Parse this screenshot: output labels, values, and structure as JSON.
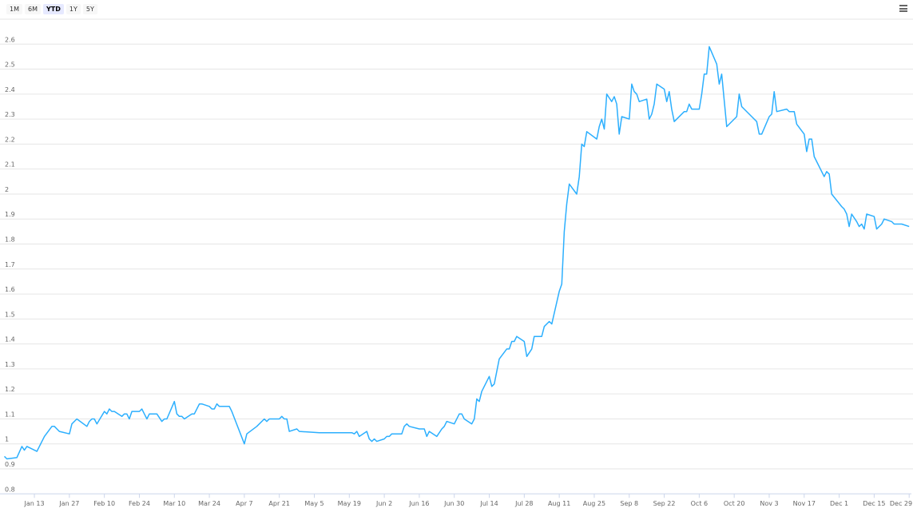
{
  "range_selector": {
    "buttons": [
      "1M",
      "6M",
      "YTD",
      "1Y",
      "5Y"
    ],
    "selected": "YTD"
  },
  "menu_icon": "hamburger-menu-icon",
  "colors": {
    "line": "#2caffe",
    "grid": "#e6e6e6",
    "axis": "#ccd6eb"
  },
  "chart_data": {
    "type": "line",
    "title": "",
    "xlabel": "",
    "ylabel": "",
    "ylim": [
      0.8,
      2.7
    ],
    "yticks": [
      "0.8",
      "0.9",
      "1",
      "1.1",
      "1.2",
      "1.3",
      "1.4",
      "1.5",
      "1.6",
      "1.7",
      "1.8",
      "1.9",
      "2",
      "2.1",
      "2.2",
      "2.3",
      "2.4",
      "2.5",
      "2.6"
    ],
    "xticks": [
      "Jan 13",
      "Jan 27",
      "Feb 10",
      "Feb 24",
      "Mar 10",
      "Mar 24",
      "Apr 7",
      "Apr 21",
      "May 5",
      "May 19",
      "Jun 2",
      "Jun 16",
      "Jun 30",
      "Jul 14",
      "Jul 28",
      "Aug 11",
      "Aug 25",
      "Sep 8",
      "Sep 22",
      "Oct 6",
      "Oct 20",
      "Nov 3",
      "Nov 17",
      "Dec 1",
      "Dec 15",
      "Dec 29"
    ],
    "grid": true,
    "legend": "none",
    "series": [
      {
        "points": [
          [
            "Jan 1",
            0.95
          ],
          [
            "Jan 2",
            0.94
          ],
          [
            "Jan 6",
            0.945
          ],
          [
            "Jan 8",
            0.99
          ],
          [
            "Jan 9",
            0.975
          ],
          [
            "Jan 10",
            0.99
          ],
          [
            "Jan 14",
            0.97
          ],
          [
            "Jan 15",
            0.99
          ],
          [
            "Jan 17",
            1.03
          ],
          [
            "Jan 20",
            1.07
          ],
          [
            "Jan 21",
            1.07
          ],
          [
            "Jan 23",
            1.05
          ],
          [
            "Jan 27",
            1.04
          ],
          [
            "Jan 28",
            1.08
          ],
          [
            "Jan 30",
            1.1
          ],
          [
            "Feb 3",
            1.07
          ],
          [
            "Feb 4",
            1.09
          ],
          [
            "Feb 5",
            1.1
          ],
          [
            "Feb 6",
            1.1
          ],
          [
            "Feb 7",
            1.08
          ],
          [
            "Feb 10",
            1.13
          ],
          [
            "Feb 11",
            1.12
          ],
          [
            "Feb 12",
            1.14
          ],
          [
            "Feb 13",
            1.13
          ],
          [
            "Feb 14",
            1.13
          ],
          [
            "Feb 17",
            1.11
          ],
          [
            "Feb 18",
            1.12
          ],
          [
            "Feb 19",
            1.12
          ],
          [
            "Feb 20",
            1.1
          ],
          [
            "Feb 21",
            1.13
          ],
          [
            "Feb 24",
            1.13
          ],
          [
            "Feb 25",
            1.14
          ],
          [
            "Feb 26",
            1.12
          ],
          [
            "Feb 27",
            1.1
          ],
          [
            "Feb 28",
            1.12
          ],
          [
            "Mar 3",
            1.12
          ],
          [
            "Mar 5",
            1.09
          ],
          [
            "Mar 6",
            1.1
          ],
          [
            "Mar 7",
            1.1
          ],
          [
            "Mar 10",
            1.17
          ],
          [
            "Mar 11",
            1.12
          ],
          [
            "Mar 12",
            1.11
          ],
          [
            "Mar 13",
            1.11
          ],
          [
            "Mar 14",
            1.1
          ],
          [
            "Mar 17",
            1.12
          ],
          [
            "Mar 18",
            1.12
          ],
          [
            "Mar 20",
            1.16
          ],
          [
            "Mar 21",
            1.16
          ],
          [
            "Mar 24",
            1.15
          ],
          [
            "Mar 25",
            1.14
          ],
          [
            "Mar 26",
            1.14
          ],
          [
            "Mar 27",
            1.16
          ],
          [
            "Mar 28",
            1.15
          ],
          [
            "Apr 1",
            1.15
          ],
          [
            "Apr 2",
            1.13
          ],
          [
            "Apr 7",
            1.0
          ],
          [
            "Apr 8",
            1.04
          ],
          [
            "Apr 12",
            1.07
          ],
          [
            "Apr 15",
            1.1
          ],
          [
            "Apr 16",
            1.09
          ],
          [
            "Apr 17",
            1.1
          ],
          [
            "Apr 21",
            1.1
          ],
          [
            "Apr 22",
            1.11
          ],
          [
            "Apr 23",
            1.1
          ],
          [
            "Apr 24",
            1.1
          ],
          [
            "Apr 25",
            1.05
          ],
          [
            "Apr 28",
            1.06
          ],
          [
            "Apr 29",
            1.05
          ],
          [
            "May 7",
            1.045
          ],
          [
            "May 20",
            1.045
          ],
          [
            "May 21",
            1.04
          ],
          [
            "May 22",
            1.05
          ],
          [
            "May 23",
            1.03
          ],
          [
            "May 26",
            1.05
          ],
          [
            "May 27",
            1.02
          ],
          [
            "May 28",
            1.01
          ],
          [
            "May 29",
            1.02
          ],
          [
            "May 30",
            1.01
          ],
          [
            "Jun 2",
            1.02
          ],
          [
            "Jun 3",
            1.03
          ],
          [
            "Jun 4",
            1.03
          ],
          [
            "Jun 5",
            1.04
          ],
          [
            "Jun 9",
            1.04
          ],
          [
            "Jun 10",
            1.07
          ],
          [
            "Jun 11",
            1.08
          ],
          [
            "Jun 12",
            1.07
          ],
          [
            "Jun 16",
            1.06
          ],
          [
            "Jun 18",
            1.06
          ],
          [
            "Jun 19",
            1.03
          ],
          [
            "Jun 20",
            1.05
          ],
          [
            "Jun 23",
            1.03
          ],
          [
            "Jun 25",
            1.06
          ],
          [
            "Jun 26",
            1.07
          ],
          [
            "Jun 27",
            1.09
          ],
          [
            "Jun 30",
            1.08
          ],
          [
            "Jul 2",
            1.12
          ],
          [
            "Jul 3",
            1.12
          ],
          [
            "Jul 4",
            1.1
          ],
          [
            "Jul 7",
            1.08
          ],
          [
            "Jul 8",
            1.1
          ],
          [
            "Jul 9",
            1.18
          ],
          [
            "Jul 10",
            1.17
          ],
          [
            "Jul 11",
            1.21
          ],
          [
            "Jul 14",
            1.27
          ],
          [
            "Jul 15",
            1.23
          ],
          [
            "Jul 16",
            1.24
          ],
          [
            "Jul 18",
            1.34
          ],
          [
            "Jul 21",
            1.38
          ],
          [
            "Jul 22",
            1.38
          ],
          [
            "Jul 23",
            1.41
          ],
          [
            "Jul 24",
            1.41
          ],
          [
            "Jul 25",
            1.43
          ],
          [
            "Jul 28",
            1.41
          ],
          [
            "Jul 29",
            1.35
          ],
          [
            "Jul 31",
            1.38
          ],
          [
            "Aug 1",
            1.43
          ],
          [
            "Aug 4",
            1.43
          ],
          [
            "Aug 5",
            1.47
          ],
          [
            "Aug 7",
            1.49
          ],
          [
            "Aug 8",
            1.48
          ],
          [
            "Aug 11",
            1.61
          ],
          [
            "Aug 12",
            1.64
          ],
          [
            "Aug 13",
            1.85
          ],
          [
            "Aug 14",
            1.96
          ],
          [
            "Aug 15",
            2.04
          ],
          [
            "Aug 18",
            2.0
          ],
          [
            "Aug 19",
            2.07
          ],
          [
            "Aug 20",
            2.2
          ],
          [
            "Aug 21",
            2.19
          ],
          [
            "Aug 22",
            2.25
          ],
          [
            "Aug 26",
            2.22
          ],
          [
            "Aug 27",
            2.27
          ],
          [
            "Aug 28",
            2.3
          ],
          [
            "Aug 29",
            2.26
          ],
          [
            "Aug 30",
            2.4
          ],
          [
            "Sep 1",
            2.37
          ],
          [
            "Sep 2",
            2.39
          ],
          [
            "Sep 3",
            2.36
          ],
          [
            "Sep 4",
            2.24
          ],
          [
            "Sep 5",
            2.31
          ],
          [
            "Sep 8",
            2.3
          ],
          [
            "Sep 9",
            2.44
          ],
          [
            "Sep 10",
            2.41
          ],
          [
            "Sep 11",
            2.4
          ],
          [
            "Sep 12",
            2.37
          ],
          [
            "Sep 15",
            2.38
          ],
          [
            "Sep 16",
            2.3
          ],
          [
            "Sep 17",
            2.32
          ],
          [
            "Sep 18",
            2.36
          ],
          [
            "Sep 19",
            2.44
          ],
          [
            "Sep 22",
            2.42
          ],
          [
            "Sep 23",
            2.37
          ],
          [
            "Sep 24",
            2.41
          ],
          [
            "Sep 25",
            2.34
          ],
          [
            "Sep 26",
            2.29
          ],
          [
            "Sep 30",
            2.33
          ],
          [
            "Oct 1",
            2.33
          ],
          [
            "Oct 2",
            2.36
          ],
          [
            "Oct 3",
            2.34
          ],
          [
            "Oct 6",
            2.34
          ],
          [
            "Oct 7",
            2.4
          ],
          [
            "Oct 8",
            2.48
          ],
          [
            "Oct 9",
            2.48
          ],
          [
            "Oct 10",
            2.59
          ],
          [
            "Oct 13",
            2.52
          ],
          [
            "Oct 14",
            2.44
          ],
          [
            "Oct 15",
            2.48
          ],
          [
            "Oct 17",
            2.27
          ],
          [
            "Oct 21",
            2.31
          ],
          [
            "Oct 22",
            2.4
          ],
          [
            "Oct 23",
            2.35
          ],
          [
            "Oct 27",
            2.31
          ],
          [
            "Oct 29",
            2.29
          ],
          [
            "Oct 30",
            2.24
          ],
          [
            "Oct 31",
            2.24
          ],
          [
            "Nov 3",
            2.31
          ],
          [
            "Nov 4",
            2.32
          ],
          [
            "Nov 5",
            2.41
          ],
          [
            "Nov 6",
            2.33
          ],
          [
            "Nov 10",
            2.34
          ],
          [
            "Nov 11",
            2.33
          ],
          [
            "Nov 13",
            2.33
          ],
          [
            "Nov 14",
            2.28
          ],
          [
            "Nov 17",
            2.24
          ],
          [
            "Nov 18",
            2.17
          ],
          [
            "Nov 19",
            2.22
          ],
          [
            "Nov 20",
            2.22
          ],
          [
            "Nov 21",
            2.15
          ],
          [
            "Nov 25",
            2.07
          ],
          [
            "Nov 26",
            2.09
          ],
          [
            "Nov 27",
            2.08
          ],
          [
            "Nov 28",
            2.0
          ],
          [
            "Dec 2",
            1.95
          ],
          [
            "Dec 3",
            1.94
          ],
          [
            "Dec 4",
            1.92
          ],
          [
            "Dec 5",
            1.87
          ],
          [
            "Dec 6",
            1.92
          ],
          [
            "Dec 8",
            1.89
          ],
          [
            "Dec 9",
            1.87
          ],
          [
            "Dec 10",
            1.88
          ],
          [
            "Dec 11",
            1.86
          ],
          [
            "Dec 12",
            1.92
          ],
          [
            "Dec 15",
            1.91
          ],
          [
            "Dec 16",
            1.86
          ],
          [
            "Dec 18",
            1.88
          ],
          [
            "Dec 19",
            1.9
          ],
          [
            "Dec 22",
            1.89
          ],
          [
            "Dec 23",
            1.88
          ],
          [
            "Dec 26",
            1.88
          ],
          [
            "Dec 29",
            1.87
          ]
        ]
      }
    ]
  }
}
